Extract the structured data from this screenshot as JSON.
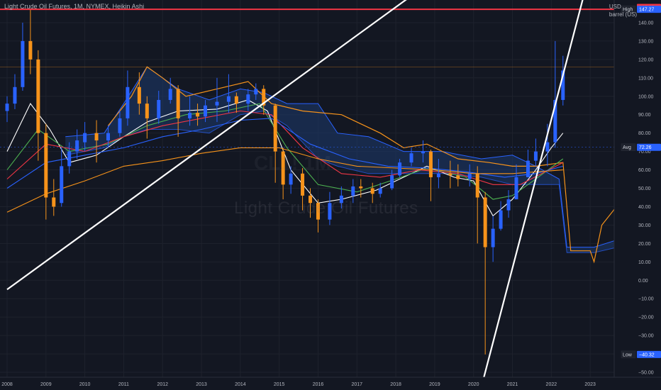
{
  "header": {
    "title": "Light Crude Oil Futures, 1M, NYMEX, Heikin Ashi",
    "currency": "USD",
    "unit": "barrel (US)"
  },
  "watermark": {
    "symbol": "CL1! 1M",
    "name": "Light Crude Oil Futures"
  },
  "colors": {
    "background": "#131722",
    "up": "#2962ff",
    "down": "#f7931a",
    "red_line": "#f23645",
    "trend": "#ffffff",
    "cloud": "#1e3a6e"
  },
  "chart_data": {
    "type": "candlestick",
    "x_labels": [
      "2008",
      "2009",
      "2010",
      "2011",
      "2012",
      "2013",
      "2014",
      "2015",
      "2016",
      "2017",
      "2018",
      "2019",
      "2020",
      "2021",
      "2022",
      "2023"
    ],
    "y_ticks": [
      140,
      130,
      120,
      110,
      100,
      90,
      80,
      70,
      60,
      50,
      40,
      30,
      20,
      10,
      0,
      -10,
      -20,
      -30,
      -40,
      -50
    ],
    "y_tick_labels": [
      "140.00",
      "130.00",
      "120.00",
      "110.00",
      "100.00",
      "90.00",
      "80.00",
      "70.00",
      "60.00",
      "50.00",
      "40.00",
      "30.00",
      "20.00",
      "10.00",
      "0.00",
      "−10.00",
      "−20.00",
      "−30.00",
      "−40.00",
      "−50.00"
    ],
    "ylim": [
      -55,
      150
    ],
    "xlim": [
      2008.0,
      2023.8
    ],
    "candles": [
      {
        "t": 2008.0,
        "o": 92,
        "c": 96,
        "h": 100,
        "l": 86
      },
      {
        "t": 2008.2,
        "o": 96,
        "c": 105,
        "h": 112,
        "l": 93
      },
      {
        "t": 2008.4,
        "o": 105,
        "c": 130,
        "h": 140,
        "l": 103
      },
      {
        "t": 2008.6,
        "o": 130,
        "c": 120,
        "h": 147,
        "l": 112
      },
      {
        "t": 2008.8,
        "o": 120,
        "c": 80,
        "h": 125,
        "l": 65
      },
      {
        "t": 2009.0,
        "o": 80,
        "c": 45,
        "h": 85,
        "l": 33
      },
      {
        "t": 2009.2,
        "o": 45,
        "c": 40,
        "h": 55,
        "l": 35
      },
      {
        "t": 2009.4,
        "o": 42,
        "c": 62,
        "h": 72,
        "l": 40
      },
      {
        "t": 2009.6,
        "o": 62,
        "c": 70,
        "h": 75,
        "l": 58
      },
      {
        "t": 2009.8,
        "o": 70,
        "c": 76,
        "h": 82,
        "l": 66
      },
      {
        "t": 2010.0,
        "o": 75,
        "c": 80,
        "h": 86,
        "l": 70
      },
      {
        "t": 2010.3,
        "o": 80,
        "c": 76,
        "h": 87,
        "l": 64
      },
      {
        "t": 2010.6,
        "o": 76,
        "c": 80,
        "h": 84,
        "l": 72
      },
      {
        "t": 2010.9,
        "o": 80,
        "c": 88,
        "h": 92,
        "l": 78
      },
      {
        "t": 2011.1,
        "o": 88,
        "c": 105,
        "h": 114,
        "l": 84
      },
      {
        "t": 2011.4,
        "o": 105,
        "c": 96,
        "h": 113,
        "l": 90
      },
      {
        "t": 2011.6,
        "o": 96,
        "c": 88,
        "h": 100,
        "l": 77
      },
      {
        "t": 2011.9,
        "o": 88,
        "c": 98,
        "h": 103,
        "l": 85
      },
      {
        "t": 2012.2,
        "o": 98,
        "c": 104,
        "h": 110,
        "l": 96
      },
      {
        "t": 2012.4,
        "o": 104,
        "c": 88,
        "h": 106,
        "l": 78
      },
      {
        "t": 2012.7,
        "o": 88,
        "c": 91,
        "h": 100,
        "l": 84
      },
      {
        "t": 2012.9,
        "o": 91,
        "c": 89,
        "h": 96,
        "l": 84
      },
      {
        "t": 2013.1,
        "o": 89,
        "c": 95,
        "h": 98,
        "l": 86
      },
      {
        "t": 2013.4,
        "o": 95,
        "c": 97,
        "h": 110,
        "l": 86
      },
      {
        "t": 2013.7,
        "o": 97,
        "c": 100,
        "h": 112,
        "l": 91
      },
      {
        "t": 2013.9,
        "o": 100,
        "c": 96,
        "h": 102,
        "l": 91
      },
      {
        "t": 2014.2,
        "o": 96,
        "c": 101,
        "h": 104,
        "l": 92
      },
      {
        "t": 2014.4,
        "o": 101,
        "c": 104,
        "h": 107,
        "l": 98
      },
      {
        "t": 2014.6,
        "o": 104,
        "c": 95,
        "h": 106,
        "l": 90
      },
      {
        "t": 2014.9,
        "o": 95,
        "c": 70,
        "h": 96,
        "l": 53
      },
      {
        "t": 2015.1,
        "o": 70,
        "c": 52,
        "h": 72,
        "l": 44
      },
      {
        "t": 2015.3,
        "o": 52,
        "c": 58,
        "h": 62,
        "l": 47
      },
      {
        "t": 2015.6,
        "o": 58,
        "c": 46,
        "h": 61,
        "l": 38
      },
      {
        "t": 2015.8,
        "o": 46,
        "c": 42,
        "h": 50,
        "l": 34
      },
      {
        "t": 2016.0,
        "o": 42,
        "c": 33,
        "h": 44,
        "l": 26
      },
      {
        "t": 2016.3,
        "o": 33,
        "c": 42,
        "h": 48,
        "l": 30
      },
      {
        "t": 2016.6,
        "o": 42,
        "c": 46,
        "h": 51,
        "l": 39
      },
      {
        "t": 2016.9,
        "o": 46,
        "c": 51,
        "h": 55,
        "l": 42
      },
      {
        "t": 2017.1,
        "o": 51,
        "c": 50,
        "h": 55,
        "l": 45
      },
      {
        "t": 2017.4,
        "o": 50,
        "c": 47,
        "h": 53,
        "l": 42
      },
      {
        "t": 2017.6,
        "o": 47,
        "c": 50,
        "h": 53,
        "l": 45
      },
      {
        "t": 2017.9,
        "o": 50,
        "c": 57,
        "h": 60,
        "l": 49
      },
      {
        "t": 2018.1,
        "o": 57,
        "c": 64,
        "h": 66,
        "l": 56
      },
      {
        "t": 2018.4,
        "o": 64,
        "c": 69,
        "h": 72,
        "l": 62
      },
      {
        "t": 2018.7,
        "o": 69,
        "c": 70,
        "h": 76,
        "l": 64
      },
      {
        "t": 2018.9,
        "o": 70,
        "c": 56,
        "h": 71,
        "l": 43
      },
      {
        "t": 2019.1,
        "o": 56,
        "c": 58,
        "h": 66,
        "l": 50
      },
      {
        "t": 2019.4,
        "o": 58,
        "c": 57,
        "h": 65,
        "l": 50
      },
      {
        "t": 2019.6,
        "o": 57,
        "c": 55,
        "h": 63,
        "l": 51
      },
      {
        "t": 2019.9,
        "o": 55,
        "c": 58,
        "h": 63,
        "l": 51
      },
      {
        "t": 2020.1,
        "o": 58,
        "c": 45,
        "h": 62,
        "l": 20
      },
      {
        "t": 2020.3,
        "o": 45,
        "c": 18,
        "h": 48,
        "l": -40.32
      },
      {
        "t": 2020.5,
        "o": 18,
        "c": 28,
        "h": 35,
        "l": 10
      },
      {
        "t": 2020.7,
        "o": 28,
        "c": 38,
        "h": 43,
        "l": 27
      },
      {
        "t": 2020.9,
        "o": 38,
        "c": 44,
        "h": 49,
        "l": 34
      },
      {
        "t": 2021.1,
        "o": 44,
        "c": 56,
        "h": 63,
        "l": 44
      },
      {
        "t": 2021.4,
        "o": 56,
        "c": 65,
        "h": 71,
        "l": 56
      },
      {
        "t": 2021.6,
        "o": 65,
        "c": 70,
        "h": 77,
        "l": 62
      },
      {
        "t": 2021.9,
        "o": 70,
        "c": 75,
        "h": 85,
        "l": 62
      },
      {
        "t": 2022.1,
        "o": 75,
        "c": 98,
        "h": 130,
        "l": 72
      },
      {
        "t": 2022.3,
        "o": 98,
        "c": 114,
        "h": 122,
        "l": 95
      }
    ],
    "horizontal_levels": [
      {
        "name": "High",
        "value": 147.27,
        "color": "#f23645"
      }
    ],
    "price_labels": [
      {
        "label": "",
        "value": 148.26,
        "color": "#f23645",
        "text": "148.26"
      },
      {
        "label": "High",
        "value": 147.27,
        "color": "#2962ff",
        "text": "147.27"
      },
      {
        "label": "Avg",
        "value": 72.26,
        "color": "#2962ff",
        "text": "72.26"
      },
      {
        "label": "Low",
        "value": -40.32,
        "color": "#2962ff",
        "text": "−40.32"
      }
    ],
    "avg_value": 72.26,
    "low_value": -40.32,
    "trendlines": [
      {
        "x1": 2008.0,
        "y1": -5,
        "x2": 2019.6,
        "y2": 173
      },
      {
        "x1": 2020.2,
        "y1": -58,
        "x2": 2022.9,
        "y2": 160
      }
    ],
    "moving_averages": [
      {
        "color": "#ffffff",
        "points": [
          [
            2008.0,
            70
          ],
          [
            2008.6,
            96
          ],
          [
            2009.1,
            82
          ],
          [
            2009.6,
            64
          ],
          [
            2010.3,
            68
          ],
          [
            2011.0,
            78
          ],
          [
            2011.6,
            86
          ],
          [
            2012.4,
            92
          ],
          [
            2013.4,
            93
          ],
          [
            2014.2,
            98
          ],
          [
            2014.7,
            92
          ],
          [
            2015.3,
            60
          ],
          [
            2016.0,
            42
          ],
          [
            2016.6,
            44
          ],
          [
            2017.5,
            49
          ],
          [
            2018.2,
            56
          ],
          [
            2018.8,
            62
          ],
          [
            2019.5,
            56
          ],
          [
            2020.0,
            54
          ],
          [
            2020.5,
            35
          ],
          [
            2021.0,
            44
          ],
          [
            2021.6,
            60
          ],
          [
            2022.0,
            72
          ],
          [
            2022.3,
            80
          ]
        ]
      },
      {
        "color": "#4caf50",
        "points": [
          [
            2008.0,
            60
          ],
          [
            2008.8,
            82
          ],
          [
            2009.6,
            70
          ],
          [
            2010.6,
            74
          ],
          [
            2011.6,
            84
          ],
          [
            2012.6,
            90
          ],
          [
            2013.6,
            92
          ],
          [
            2014.5,
            96
          ],
          [
            2015.2,
            72
          ],
          [
            2016.0,
            52
          ],
          [
            2017.0,
            48
          ],
          [
            2018.0,
            55
          ],
          [
            2018.8,
            61
          ],
          [
            2019.8,
            56
          ],
          [
            2020.5,
            44
          ],
          [
            2021.0,
            46
          ],
          [
            2021.6,
            55
          ],
          [
            2022.3,
            66
          ]
        ]
      },
      {
        "color": "#f23645",
        "points": [
          [
            2008.0,
            55
          ],
          [
            2009.0,
            74
          ],
          [
            2010.0,
            70
          ],
          [
            2011.0,
            78
          ],
          [
            2012.0,
            84
          ],
          [
            2013.0,
            88
          ],
          [
            2014.0,
            92
          ],
          [
            2014.8,
            90
          ],
          [
            2015.6,
            72
          ],
          [
            2016.6,
            58
          ],
          [
            2017.6,
            56
          ],
          [
            2018.6,
            60
          ],
          [
            2019.6,
            58
          ],
          [
            2020.5,
            52
          ],
          [
            2021.2,
            52
          ],
          [
            2022.3,
            64
          ]
        ]
      },
      {
        "color": "#2962ff",
        "points": [
          [
            2008.0,
            50
          ],
          [
            2009.0,
            64
          ],
          [
            2010.0,
            68
          ],
          [
            2011.0,
            72
          ],
          [
            2012.0,
            78
          ],
          [
            2013.0,
            82
          ],
          [
            2014.0,
            87
          ],
          [
            2014.8,
            88
          ],
          [
            2015.8,
            74
          ],
          [
            2016.8,
            66
          ],
          [
            2017.8,
            62
          ],
          [
            2018.8,
            61
          ],
          [
            2019.8,
            59
          ],
          [
            2020.8,
            56
          ],
          [
            2021.6,
            58
          ],
          [
            2022.3,
            62
          ]
        ]
      },
      {
        "color": "#f7931a",
        "points": [
          [
            2008.0,
            37
          ],
          [
            2009.0,
            47
          ],
          [
            2010.0,
            54
          ],
          [
            2011.0,
            62
          ],
          [
            2012.0,
            65
          ],
          [
            2013.0,
            69
          ],
          [
            2014.0,
            72
          ],
          [
            2015.0,
            72
          ],
          [
            2016.0,
            66
          ],
          [
            2017.0,
            62
          ],
          [
            2018.0,
            61
          ],
          [
            2019.0,
            60
          ],
          [
            2020.0,
            58
          ],
          [
            2021.0,
            58
          ],
          [
            2022.3,
            60
          ]
        ]
      }
    ],
    "cloud_upper": [
      [
        2009.5,
        78
      ],
      [
        2010.5,
        80
      ],
      [
        2011.0,
        96
      ],
      [
        2011.6,
        116
      ],
      [
        2012.4,
        104
      ],
      [
        2013.2,
        98
      ],
      [
        2014.0,
        104
      ],
      [
        2014.6,
        102
      ],
      [
        2015.2,
        96
      ],
      [
        2016.0,
        96
      ],
      [
        2016.5,
        80
      ],
      [
        2017.3,
        78
      ],
      [
        2018.2,
        70
      ],
      [
        2019.2,
        70
      ],
      [
        2020.2,
        66
      ],
      [
        2021.0,
        68
      ],
      [
        2021.6,
        62
      ],
      [
        2022.2,
        55
      ],
      [
        2022.4,
        18
      ],
      [
        2023.1,
        18
      ],
      [
        2023.7,
        22
      ]
    ],
    "cloud_lower": [
      [
        2009.5,
        68
      ],
      [
        2010.5,
        72
      ],
      [
        2011.0,
        78
      ],
      [
        2011.6,
        82
      ],
      [
        2012.4,
        82
      ],
      [
        2013.2,
        80
      ],
      [
        2014.0,
        90
      ],
      [
        2014.6,
        92
      ],
      [
        2015.2,
        84
      ],
      [
        2016.0,
        66
      ],
      [
        2016.5,
        62
      ],
      [
        2017.3,
        58
      ],
      [
        2018.2,
        58
      ],
      [
        2019.2,
        58
      ],
      [
        2020.2,
        56
      ],
      [
        2021.0,
        52
      ],
      [
        2021.6,
        52
      ],
      [
        2022.2,
        52
      ],
      [
        2022.4,
        15
      ],
      [
        2023.1,
        15
      ],
      [
        2023.7,
        18
      ]
    ],
    "band_upper": [
      [
        2010.6,
        84
      ],
      [
        2011.2,
        100
      ],
      [
        2011.6,
        116
      ],
      [
        2012.0,
        110
      ],
      [
        2012.6,
        100
      ],
      [
        2013.4,
        104
      ],
      [
        2014.2,
        108
      ],
      [
        2014.8,
        96
      ],
      [
        2015.6,
        92
      ],
      [
        2016.6,
        90
      ],
      [
        2017.6,
        80
      ],
      [
        2018.2,
        72
      ],
      [
        2018.8,
        74
      ],
      [
        2019.6,
        66
      ],
      [
        2020.4,
        64
      ],
      [
        2021.0,
        62
      ],
      [
        2021.6,
        62
      ],
      [
        2022.3,
        64
      ],
      [
        2022.5,
        16
      ],
      [
        2023.0,
        16
      ],
      [
        2023.1,
        10
      ],
      [
        2023.3,
        30
      ],
      [
        2023.6,
        38
      ],
      [
        2023.8,
        45
      ]
    ]
  }
}
